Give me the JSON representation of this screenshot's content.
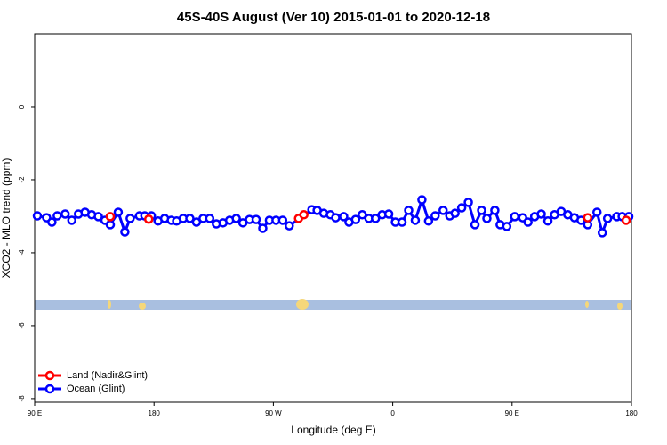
{
  "chart_data": {
    "type": "line",
    "title": "45S-40S August (Ver 10)   2015-01-01 to 2020-12-18",
    "xlabel": "Longitude (deg E)",
    "ylabel": "XCO2 - MLO trend (ppm)",
    "xlim": [
      90,
      540
    ],
    "ylim": [
      -8.1,
      2.0
    ],
    "xticks": [
      {
        "value": 90,
        "label": "90 E"
      },
      180,
      {
        "value": 270,
        "label": "90 W"
      },
      {
        "value": 360,
        "label": "0"
      },
      {
        "value": 450,
        "label": "90 E"
      },
      {
        "value": 540,
        "label": "180"
      }
    ],
    "yticks": [
      0,
      -2,
      -4,
      -6,
      -8
    ],
    "legend": "bottom-left",
    "series": [
      {
        "name": "Land (Nadir&Glint)",
        "color": "#ff0000",
        "x": [
          147,
          null,
          176,
          null,
          289,
          293,
          null,
          507,
          null,
          536
        ],
        "values": [
          -3.01,
          null,
          -3.08,
          null,
          -3.06,
          -2.96,
          null,
          -3.04,
          null,
          -3.11
        ]
      },
      {
        "name": "Ocean (Glint)",
        "color": "#0000ff",
        "x": [
          92,
          99,
          103,
          107,
          113,
          118,
          123,
          128,
          133,
          138,
          143,
          147,
          153,
          158,
          162,
          169,
          173,
          178,
          183,
          188,
          193,
          197,
          202,
          207,
          212,
          217,
          222,
          227,
          232,
          237,
          242,
          247,
          252,
          257,
          262,
          267,
          272,
          277,
          282,
          299,
          303,
          308,
          313,
          317,
          323,
          327,
          332,
          337,
          342,
          347,
          352,
          357,
          362,
          367,
          372,
          377,
          382,
          387,
          392,
          398,
          403,
          407,
          412,
          417,
          422,
          427,
          431,
          437,
          441,
          446,
          452,
          458,
          462,
          467,
          472,
          477,
          482,
          487,
          492,
          497,
          502,
          507,
          514,
          518,
          522,
          529,
          533,
          538
        ],
        "values": [
          -2.99,
          -3.04,
          -3.16,
          -2.99,
          -2.94,
          -3.11,
          -2.94,
          -2.89,
          -2.96,
          -3.01,
          -3.11,
          -3.23,
          -2.89,
          -3.43,
          -3.06,
          -2.99,
          -2.99,
          -2.99,
          -3.13,
          -3.06,
          -3.11,
          -3.13,
          -3.06,
          -3.06,
          -3.16,
          -3.06,
          -3.06,
          -3.21,
          -3.18,
          -3.11,
          -3.06,
          -3.18,
          -3.09,
          -3.09,
          -3.33,
          -3.11,
          -3.11,
          -3.11,
          -3.26,
          -2.82,
          -2.84,
          -2.92,
          -2.96,
          -3.04,
          -3.01,
          -3.16,
          -3.09,
          -2.96,
          -3.06,
          -3.06,
          -2.96,
          -2.94,
          -3.16,
          -3.16,
          -2.84,
          -3.11,
          -2.55,
          -3.13,
          -2.99,
          -2.84,
          -2.99,
          -2.92,
          -2.77,
          -2.62,
          -3.23,
          -2.84,
          -3.06,
          -2.84,
          -3.23,
          -3.28,
          -3.01,
          -3.04,
          -3.16,
          -3.01,
          -2.94,
          -3.13,
          -2.96,
          -2.87,
          -2.96,
          -3.04,
          -3.11,
          -3.23,
          -2.89,
          -3.45,
          -3.06,
          -3.01,
          -3.01,
          -3.01
        ]
      }
    ]
  }
}
